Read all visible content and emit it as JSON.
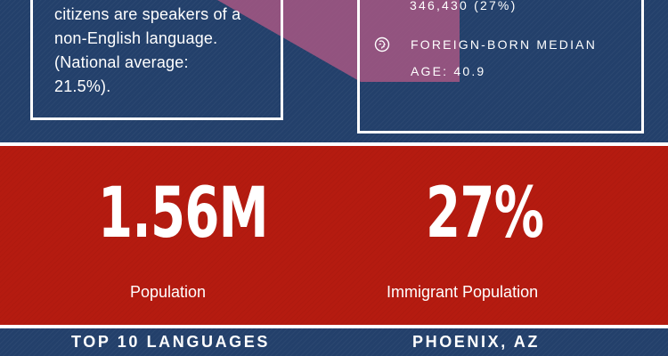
{
  "colors": {
    "navy": "#23406b",
    "red": "#b51b10",
    "white": "#ffffff",
    "map_pink": "#b85a86"
  },
  "language_box": {
    "lines": [
      "citizens are speakers of a",
      "non-English language.",
      "(National average:",
      "21.5%)."
    ]
  },
  "foreign_born": {
    "count": "346,430 (27%)",
    "icon": "face-profile-icon",
    "median_age_label_line1": "FOREIGN-BORN MEDIAN",
    "median_age_label_line2": "AGE: 40.9"
  },
  "stats": {
    "population_value": "1.56M",
    "population_label": "Population",
    "immigrant_value": "27%",
    "immigrant_label": "Immigrant Population"
  },
  "footer": {
    "left_heading": "TOP 10 LANGUAGES",
    "right_heading": "PHOENIX, AZ"
  }
}
